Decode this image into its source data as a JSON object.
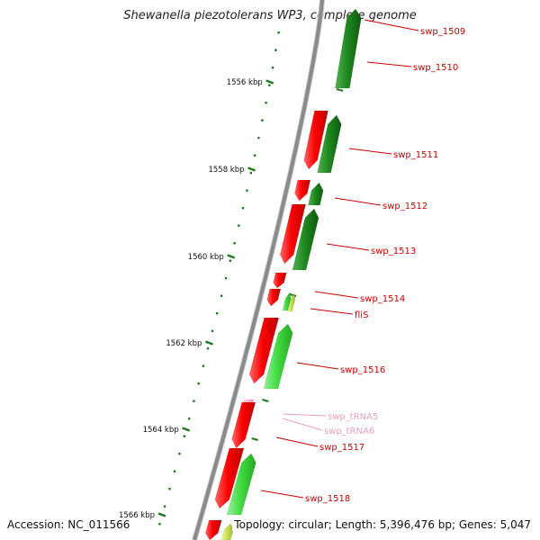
{
  "title": "Shewanella piezotolerans WP3, complete genome",
  "footer": {
    "accession": "Accession: NC_011566",
    "topology": "Topology: circular; Length: 5,396,476 bp; Genes: 5,047"
  },
  "colors": {
    "backbone": "#8a8a8a",
    "tick": "#1f7a1f",
    "kbp_label": "#111111",
    "gene_label": "#cc0000",
    "rna_label": "#e8a0c0",
    "forward": "#ff0000",
    "reverse_dark": "#1f8a1f",
    "reverse_light": "#44dd44"
  },
  "kbp_labels": [
    "1556 kbp",
    "1558 kbp",
    "1560 kbp",
    "1562 kbp",
    "1564 kbp",
    "1566 kbp"
  ],
  "gene_labels": [
    {
      "text": "swp_1509",
      "kind": "gene"
    },
    {
      "text": "swp_1510",
      "kind": "gene"
    },
    {
      "text": "swp_1511",
      "kind": "gene"
    },
    {
      "text": "swp_1512",
      "kind": "gene"
    },
    {
      "text": "swp_1513",
      "kind": "gene"
    },
    {
      "text": "swp_1514",
      "kind": "gene"
    },
    {
      "text": "fliS",
      "kind": "gene"
    },
    {
      "text": "swp_1516",
      "kind": "gene"
    },
    {
      "text": "swp_tRNA5",
      "kind": "rna"
    },
    {
      "text": "swp_tRNA6",
      "kind": "rna"
    },
    {
      "text": "swp_1517",
      "kind": "gene"
    },
    {
      "text": "swp_1518",
      "kind": "gene"
    }
  ]
}
